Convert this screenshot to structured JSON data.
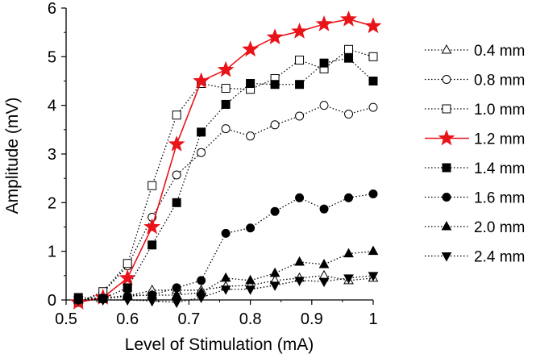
{
  "chart_data": {
    "type": "line",
    "xlabel": "Level of Stimulation (mA)",
    "ylabel": "Amplitude (mV)",
    "xlim": [
      0.5,
      1.0
    ],
    "ylim": [
      0,
      6
    ],
    "xticks": [
      0.5,
      0.6,
      0.7,
      0.8,
      0.9,
      1
    ],
    "xtick_labels": [
      "0.5",
      "0.6",
      "0.7",
      "0.8",
      "0.9",
      "1"
    ],
    "yticks": [
      0,
      1,
      2,
      3,
      4,
      5,
      6
    ],
    "ytick_labels": [
      "0",
      "1",
      "2",
      "3",
      "4",
      "5",
      "6"
    ],
    "grid": false,
    "legend_position": "right",
    "x": [
      0.52,
      0.56,
      0.6,
      0.64,
      0.68,
      0.72,
      0.76,
      0.8,
      0.84,
      0.88,
      0.92,
      0.96,
      1.0
    ],
    "series": [
      {
        "name": "0.4 mm",
        "marker": "triangle-up-open",
        "line": "dotted",
        "color": "#000000",
        "values": [
          0.0,
          0.05,
          0.08,
          0.2,
          0.2,
          0.2,
          0.28,
          0.3,
          0.4,
          0.45,
          0.5,
          0.4,
          0.45
        ]
      },
      {
        "name": "0.8 mm",
        "marker": "circle-open",
        "line": "dotted",
        "color": "#000000",
        "values": [
          -0.05,
          0.15,
          0.7,
          1.7,
          2.57,
          3.03,
          3.52,
          3.37,
          3.6,
          3.78,
          4.0,
          3.82,
          3.96
        ]
      },
      {
        "name": "1.0 mm",
        "marker": "square-open",
        "line": "dotted",
        "color": "#000000",
        "values": [
          -0.05,
          0.17,
          0.75,
          2.35,
          3.8,
          4.45,
          4.35,
          4.33,
          4.55,
          4.93,
          4.75,
          5.15,
          5.0
        ]
      },
      {
        "name": "1.2 mm",
        "marker": "star-filled",
        "line": "solid",
        "color": "#e8141a",
        "values": [
          -0.05,
          0.05,
          0.45,
          1.5,
          3.2,
          4.5,
          4.73,
          5.15,
          5.4,
          5.52,
          5.67,
          5.77,
          5.63
        ]
      },
      {
        "name": "1.4 mm",
        "marker": "square-filled",
        "line": "dotted",
        "color": "#000000",
        "values": [
          0.05,
          0.03,
          0.25,
          1.13,
          2.0,
          3.45,
          4.02,
          4.45,
          4.43,
          4.43,
          4.87,
          4.97,
          4.5
        ]
      },
      {
        "name": "1.6 mm",
        "marker": "circle-filled",
        "line": "dotted",
        "color": "#000000",
        "values": [
          0.0,
          0.02,
          0.08,
          0.1,
          0.25,
          0.4,
          1.37,
          1.48,
          1.82,
          2.1,
          1.87,
          2.1,
          2.18
        ]
      },
      {
        "name": "2.0 mm",
        "marker": "triangle-up-filled",
        "line": "dotted",
        "color": "#000000",
        "values": [
          0.0,
          0.02,
          0.1,
          0.1,
          0.1,
          0.15,
          0.45,
          0.4,
          0.55,
          0.78,
          0.73,
          0.95,
          1.0
        ]
      },
      {
        "name": "2.4 mm",
        "marker": "triangle-down-filled",
        "line": "dotted",
        "color": "#000000",
        "values": [
          0.0,
          0.0,
          0.0,
          -0.02,
          -0.05,
          0.05,
          0.22,
          0.22,
          0.3,
          0.4,
          0.38,
          0.45,
          0.5
        ]
      }
    ]
  }
}
